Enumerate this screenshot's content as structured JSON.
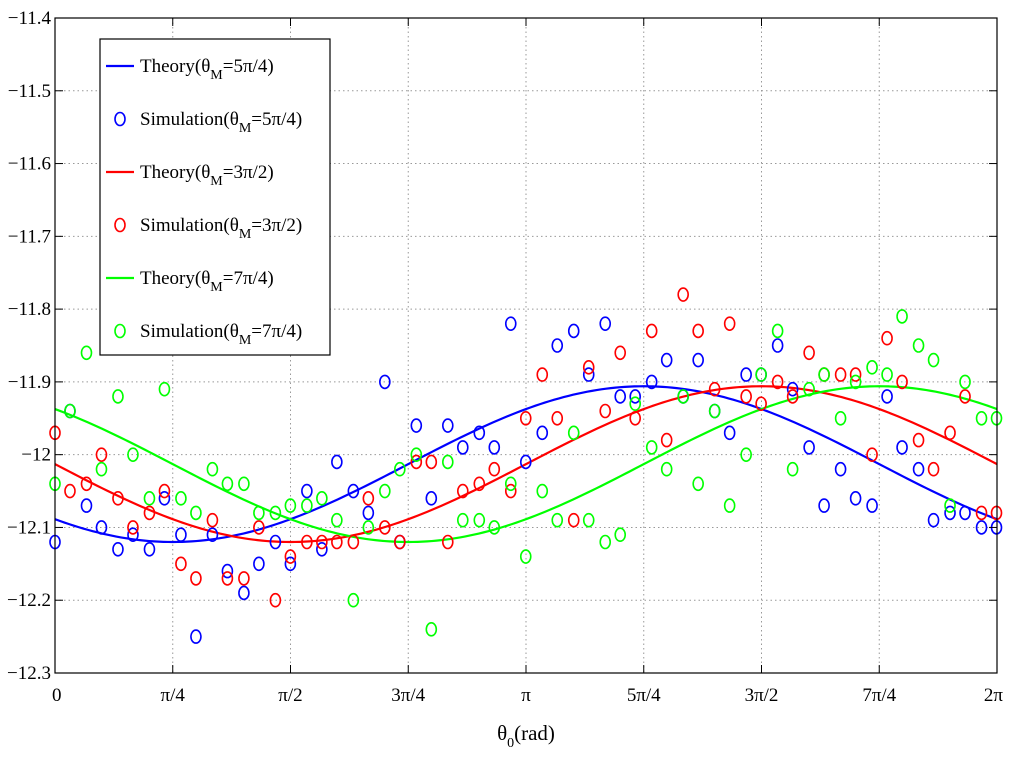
{
  "chart_data": {
    "type": "scatter",
    "title": "",
    "xlabel": "θ",
    "xlabel_sub": "0",
    "xlabel_unit": "(rad)",
    "ylabel": "",
    "xlim": [
      0,
      6.283185
    ],
    "ylim": [
      -12.3,
      -11.4
    ],
    "grid": true,
    "legend_position": "top-left",
    "x_ticks": [
      {
        "value": 0,
        "label": "0"
      },
      {
        "value": 0.785398,
        "label": "π/4"
      },
      {
        "value": 1.570796,
        "label": "π/2"
      },
      {
        "value": 2.356194,
        "label": "3π/4"
      },
      {
        "value": 3.141593,
        "label": "π"
      },
      {
        "value": 3.926991,
        "label": "5π/4"
      },
      {
        "value": 4.712389,
        "label": "3π/2"
      },
      {
        "value": 5.497787,
        "label": "7π/4"
      },
      {
        "value": 6.283185,
        "label": "2π"
      }
    ],
    "y_ticks": [
      {
        "value": -11.4,
        "label": "−11.4"
      },
      {
        "value": -11.5,
        "label": "−11.5"
      },
      {
        "value": -11.6,
        "label": "−11.6"
      },
      {
        "value": -11.7,
        "label": "−11.7"
      },
      {
        "value": -11.8,
        "label": "−11.8"
      },
      {
        "value": -11.9,
        "label": "−11.9"
      },
      {
        "value": -12.0,
        "label": "−12"
      },
      {
        "value": -12.1,
        "label": "−12.1"
      },
      {
        "value": -12.2,
        "label": "−12.2"
      },
      {
        "value": -12.3,
        "label": "−12.3"
      }
    ],
    "theory_model": {
      "mean": -12.013,
      "amplitude": 0.107
    },
    "series": [
      {
        "name": "Theory(θM=5π/4)",
        "legend_main": "Theory(θ",
        "legend_sub": "M",
        "legend_tail": "=5π/4)",
        "kind": "line",
        "color": "#0000ff",
        "theta_M": 3.926991
      },
      {
        "name": "Simulation(θM=5π/4)",
        "legend_main": "Simulation(θ",
        "legend_sub": "M",
        "legend_tail": "=5π/4)",
        "kind": "points",
        "color": "#0000ff",
        "x": [
          0,
          0.1,
          0.21,
          0.31,
          0.42,
          0.52,
          0.63,
          0.73,
          0.84,
          0.94,
          1.05,
          1.15,
          1.26,
          1.36,
          1.47,
          1.57,
          1.68,
          1.78,
          1.88,
          1.99,
          2.09,
          2.2,
          2.3,
          2.41,
          2.51,
          2.62,
          2.72,
          2.83,
          2.93,
          3.04,
          3.14,
          3.25,
          3.35,
          3.46,
          3.56,
          3.67,
          3.77,
          3.87,
          3.98,
          4.08,
          4.19,
          4.29,
          4.4,
          4.5,
          4.61,
          4.71,
          4.82,
          4.92,
          5.03,
          5.13,
          5.24,
          5.34,
          5.45,
          5.55,
          5.65,
          5.76,
          5.86,
          5.97,
          6.07,
          6.18,
          6.28
        ],
        "y": [
          -12.12,
          -11.94,
          -12.07,
          -12.1,
          -12.13,
          -12.11,
          -12.13,
          -12.06,
          -12.11,
          -12.25,
          -12.11,
          -12.16,
          -12.19,
          -12.15,
          -12.12,
          -12.15,
          -12.05,
          -12.13,
          -12.01,
          -12.05,
          -12.08,
          -11.9,
          -12.12,
          -11.96,
          -12.06,
          -11.96,
          -11.99,
          -11.97,
          -11.99,
          -11.82,
          -12.01,
          -11.97,
          -11.85,
          -11.83,
          -11.89,
          -11.82,
          -11.92,
          -11.92,
          -11.9,
          -11.87,
          -11.92,
          -11.87,
          -11.94,
          -11.97,
          -11.89,
          -11.89,
          -11.85,
          -11.91,
          -11.99,
          -12.07,
          -12.02,
          -12.06,
          -12.07,
          -11.92,
          -11.99,
          -12.02,
          -12.09,
          -12.08,
          -12.08,
          -12.1,
          -12.1
        ]
      },
      {
        "name": "Theory(θM=3π/2)",
        "legend_main": "Theory(θ",
        "legend_sub": "M",
        "legend_tail": "=3π/2)",
        "kind": "line",
        "color": "#ff0000",
        "theta_M": 4.712389
      },
      {
        "name": "Simulation(θM=3π/2)",
        "legend_main": "Simulation(θ",
        "legend_sub": "M",
        "legend_tail": "=3π/2)",
        "kind": "points",
        "color": "#ff0000",
        "x": [
          0,
          0.1,
          0.21,
          0.31,
          0.42,
          0.52,
          0.63,
          0.73,
          0.84,
          0.94,
          1.05,
          1.15,
          1.26,
          1.36,
          1.47,
          1.57,
          1.68,
          1.78,
          1.88,
          1.99,
          2.09,
          2.2,
          2.3,
          2.41,
          2.51,
          2.62,
          2.72,
          2.83,
          2.93,
          3.04,
          3.14,
          3.25,
          3.35,
          3.46,
          3.56,
          3.67,
          3.77,
          3.87,
          3.98,
          4.08,
          4.19,
          4.29,
          4.4,
          4.5,
          4.61,
          4.71,
          4.82,
          4.92,
          5.03,
          5.13,
          5.24,
          5.34,
          5.45,
          5.55,
          5.65,
          5.76,
          5.86,
          5.97,
          6.07,
          6.18,
          6.28
        ],
        "y": [
          -11.97,
          -12.05,
          -12.04,
          -12.0,
          -12.06,
          -12.1,
          -12.08,
          -12.05,
          -12.15,
          -12.17,
          -12.09,
          -12.17,
          -12.17,
          -12.1,
          -12.2,
          -12.14,
          -12.12,
          -12.12,
          -12.12,
          -12.12,
          -12.06,
          -12.1,
          -12.12,
          -12.01,
          -12.01,
          -12.12,
          -12.05,
          -12.04,
          -12.02,
          -12.05,
          -11.95,
          -11.89,
          -11.95,
          -12.09,
          -11.88,
          -11.94,
          -11.86,
          -11.95,
          -11.83,
          -11.98,
          -11.78,
          -11.83,
          -11.91,
          -11.82,
          -11.92,
          -11.93,
          -11.9,
          -11.92,
          -11.86,
          -11.89,
          -11.89,
          -11.89,
          -12.0,
          -11.84,
          -11.9,
          -11.98,
          -12.02,
          -11.97,
          -11.92,
          -12.08,
          -12.08
        ]
      },
      {
        "name": "Theory(θM=7π/4)",
        "legend_main": "Theory(θ",
        "legend_sub": "M",
        "legend_tail": "=7π/4)",
        "kind": "line",
        "color": "#00ff00",
        "theta_M": 5.497787
      },
      {
        "name": "Simulation(θM=7π/4)",
        "legend_main": "Simulation(θ",
        "legend_sub": "M",
        "legend_tail": "=7π/4)",
        "kind": "points",
        "color": "#00ff00",
        "x": [
          0,
          0.1,
          0.21,
          0.31,
          0.42,
          0.52,
          0.63,
          0.73,
          0.84,
          0.94,
          1.05,
          1.15,
          1.26,
          1.36,
          1.47,
          1.57,
          1.68,
          1.78,
          1.88,
          1.99,
          2.09,
          2.2,
          2.3,
          2.41,
          2.51,
          2.62,
          2.72,
          2.83,
          2.93,
          3.04,
          3.14,
          3.25,
          3.35,
          3.46,
          3.56,
          3.67,
          3.77,
          3.87,
          3.98,
          4.08,
          4.19,
          4.29,
          4.4,
          4.5,
          4.61,
          4.71,
          4.82,
          4.92,
          5.03,
          5.13,
          5.24,
          5.34,
          5.45,
          5.55,
          5.65,
          5.76,
          5.86,
          5.97,
          6.07,
          6.18,
          6.28
        ],
        "y": [
          -12.04,
          -11.94,
          -11.86,
          -12.02,
          -11.92,
          -12.0,
          -12.06,
          -11.91,
          -12.06,
          -12.08,
          -12.02,
          -12.04,
          -12.04,
          -12.08,
          -12.08,
          -12.07,
          -12.07,
          -12.06,
          -12.09,
          -12.2,
          -12.1,
          -12.05,
          -12.02,
          -12.0,
          -12.24,
          -12.01,
          -12.09,
          -12.09,
          -12.1,
          -12.04,
          -12.14,
          -12.05,
          -12.09,
          -11.97,
          -12.09,
          -12.12,
          -12.11,
          -11.93,
          -11.99,
          -12.02,
          -11.92,
          -12.04,
          -11.94,
          -12.07,
          -12.0,
          -11.89,
          -11.83,
          -12.02,
          -11.91,
          -11.89,
          -11.95,
          -11.9,
          -11.88,
          -11.89,
          -11.81,
          -11.85,
          -11.87,
          -12.07,
          -11.9,
          -11.95,
          -11.95
        ]
      }
    ]
  }
}
